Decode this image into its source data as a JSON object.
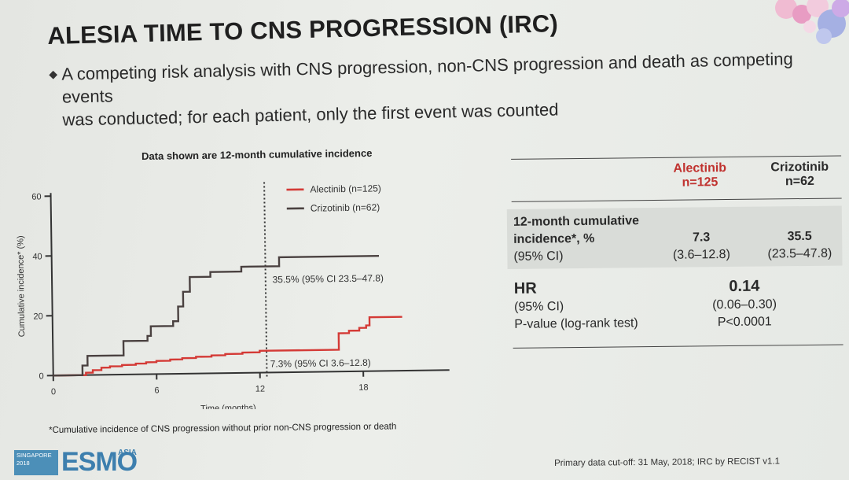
{
  "slide": {
    "title": "ALESIA TIME TO CNS PROGRESSION (IRC)",
    "bullet_line1": "A competing risk analysis with CNS progression, non-CNS progression and death as competing events",
    "bullet_line2": "was conducted; for each patient, only the first event was counted",
    "footnote": "*Cumulative incidence of CNS progression without prior non-CNS progression or death",
    "cutoff": "Primary data cut-off: 31 May, 2018; IRC by RECIST v1.1"
  },
  "logo": {
    "box_line1": "SINGAPORE",
    "box_line2": "2018",
    "word": "ESMO",
    "asia": "ASIA"
  },
  "chart_data": {
    "type": "line",
    "title": "Data shown are 12-month cumulative incidence",
    "xlabel": "Time (months)",
    "ylabel": "Cumulative incidence* (%)",
    "xlim": [
      0,
      23
    ],
    "ylim": [
      0,
      60
    ],
    "x_ticks": [
      0,
      6,
      12,
      18
    ],
    "y_ticks": [
      0,
      20,
      40,
      60
    ],
    "grid": false,
    "legend_position": "top-right",
    "reference_line_x": 12.4,
    "series": [
      {
        "name": "Alectinib (n=125)",
        "color": "#d43a36",
        "x": [
          1.4,
          1.9,
          2.3,
          2.8,
          3.3,
          4.0,
          4.8,
          5.4,
          6.0,
          6.8,
          7.5,
          8.3,
          9.2,
          10.0,
          11.0,
          12.0,
          15.5,
          16.3,
          16.6,
          17.2,
          17.8,
          18.2,
          18.4,
          20.3
        ],
        "y": [
          0,
          0.8,
          1.6,
          2.4,
          2.8,
          3.2,
          3.6,
          4.0,
          4.4,
          4.8,
          5.2,
          5.6,
          6.0,
          6.4,
          6.8,
          7.3,
          7.3,
          7.3,
          12.8,
          13.6,
          14.5,
          15.3,
          18.0,
          18.0
        ]
      },
      {
        "name": "Crizotinib (n=62)",
        "color": "#4a4140",
        "x": [
          1.2,
          1.7,
          2.0,
          3.6,
          4.1,
          5.0,
          5.5,
          5.7,
          6.5,
          7.0,
          7.3,
          7.6,
          8.0,
          9.0,
          9.2,
          10.0,
          11.0,
          11.5,
          12.0,
          12.8,
          13.2,
          19.0
        ],
        "y": [
          0,
          3.2,
          6.4,
          6.4,
          11.2,
          11.2,
          12.8,
          16.0,
          16.0,
          17.6,
          22.5,
          27.4,
          32.3,
          32.3,
          33.9,
          33.9,
          35.5,
          35.5,
          35.5,
          35.5,
          38.5,
          38.5
        ]
      }
    ],
    "annotations": [
      {
        "text": "35.5% (95% CI 23.5–47.8)",
        "x": 12.8,
        "y": 30
      },
      {
        "text": "7.3% (95% CI 3.6–12.8)",
        "x": 12.6,
        "y": 1.8
      }
    ]
  },
  "table": {
    "col1_head_line1": "Alectinib",
    "col1_head_line2": "n=125",
    "col2_head_line1": "Crizotinib",
    "col2_head_line2": "n=62",
    "row1_label_line1": "12-month cumulative",
    "row1_label_line2": "incidence*, %",
    "row1_label_line3": "(95% CI)",
    "row1_val1": "7.3",
    "row1_ci1": "(3.6–12.8)",
    "row1_val2": "35.5",
    "row1_ci2": "(23.5–47.8)",
    "hr_label": "HR",
    "hr_ci_label": "(95% CI)",
    "p_label": "P-value (log-rank test)",
    "hr_value": "0.14",
    "hr_ci": "(0.06–0.30)",
    "p_value": "P<0.0001"
  }
}
